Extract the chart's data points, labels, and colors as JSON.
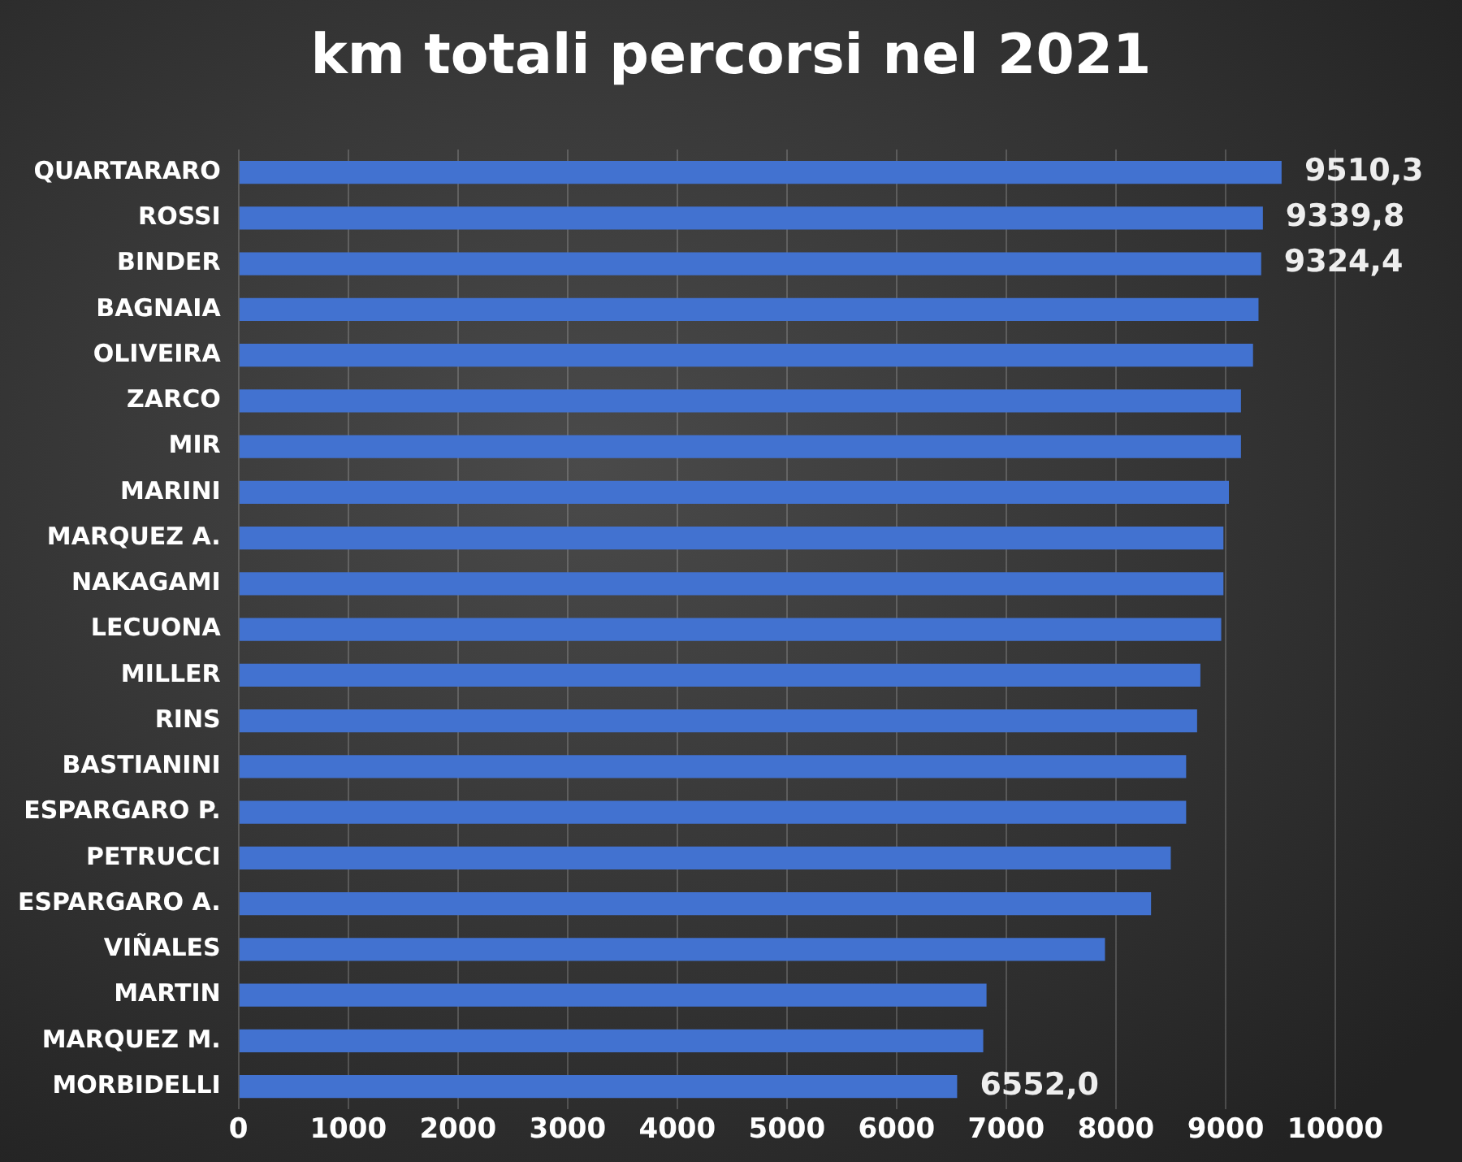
{
  "chart_data": {
    "type": "bar",
    "orientation": "horizontal",
    "title": "km totali percorsi nel 2021",
    "categories": [
      "QUARTARARO",
      "ROSSI",
      "BINDER",
      "BAGNAIA",
      "OLIVEIRA",
      "ZARCO",
      "MIR",
      "MARINI",
      "MARQUEZ A.",
      "NAKAGAMI",
      "LECUONA",
      "MILLER",
      "RINS",
      "BASTIANINI",
      "ESPARGARO P.",
      "PETRUCCI",
      "ESPARGARO A.",
      "VIÑALES",
      "MARTIN",
      "MARQUEZ M.",
      "MORBIDELLI"
    ],
    "values": [
      9510.3,
      9339.8,
      9324.4,
      9300,
      9250,
      9140,
      9140,
      9030,
      8980,
      8980,
      8960,
      8770,
      8740,
      8640,
      8640,
      8500,
      8320,
      7900,
      6820,
      6790,
      6552.0
    ],
    "value_labels": [
      "9510,3",
      "9339,8",
      "9324,4",
      null,
      null,
      null,
      null,
      null,
      null,
      null,
      null,
      null,
      null,
      null,
      null,
      null,
      null,
      null,
      null,
      null,
      "6552,0"
    ],
    "color": "#4272d0",
    "xlim": [
      0,
      10000
    ],
    "xticks": [
      0,
      1000,
      2000,
      3000,
      4000,
      5000,
      6000,
      7000,
      8000,
      9000,
      10000
    ],
    "grid": "x",
    "legend": false
  }
}
